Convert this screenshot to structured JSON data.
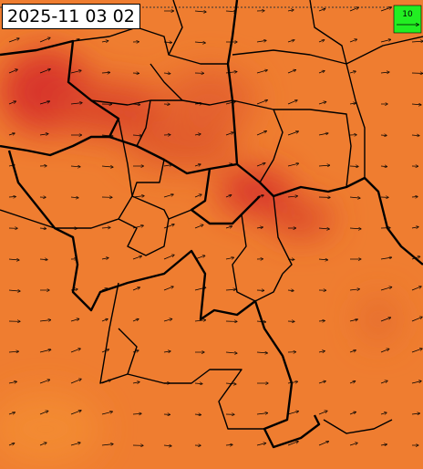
{
  "timestamp": "2025-11 03 02",
  "legend": {
    "label": "10"
  }
}
